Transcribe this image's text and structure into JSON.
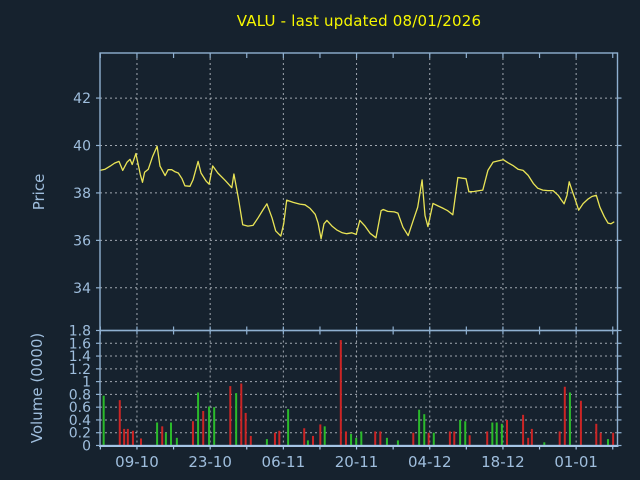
{
  "colors": {
    "background": "#16222e",
    "title": "#f8f800",
    "axis_border": "#8fb0d0",
    "bottom_axis": "#a5c5e5",
    "tick_label": "#9fbedd",
    "grid": "#b9bfc7",
    "price_line": "#e9e456",
    "volume_up": "#2bbb2b",
    "volume_down": "#cc2525"
  },
  "x_axis": {
    "domain": [
      0,
      70.7
    ],
    "minor_tick_start": 0.05,
    "minor_tick_step": 5,
    "ticks": [
      [
        5.05,
        "09-10"
      ],
      [
        15.05,
        "23-10"
      ],
      [
        25.05,
        "06-11"
      ],
      [
        35.05,
        "20-11"
      ],
      [
        45.05,
        "04-12"
      ],
      [
        55.05,
        "18-12"
      ],
      [
        65.05,
        "01-01"
      ]
    ]
  },
  "chart_data": [
    {
      "type": "line",
      "name": "price-panel",
      "title": "VALU - last updated 08/01/2026",
      "ylabel": "Price",
      "ylim": [
        32.2,
        43.9
      ],
      "grid": true,
      "yticks": [
        [
          34,
          "34"
        ],
        [
          36,
          "36"
        ],
        [
          38,
          "38"
        ],
        [
          40,
          "40"
        ],
        [
          42,
          "42"
        ]
      ],
      "series": [
        {
          "name": "close",
          "points": [
            [
              0,
              38.95
            ],
            [
              0.7,
              39.0
            ],
            [
              1.4,
              39.13
            ],
            [
              2,
              39.26
            ],
            [
              2.6,
              39.33
            ],
            [
              3.1,
              38.95
            ],
            [
              3.7,
              39.3
            ],
            [
              4.1,
              39.42
            ],
            [
              4.4,
              39.2
            ],
            [
              4.9,
              39.66
            ],
            [
              5.5,
              38.78
            ],
            [
              5.8,
              38.45
            ],
            [
              6.1,
              38.87
            ],
            [
              6.6,
              39.0
            ],
            [
              7.2,
              39.55
            ],
            [
              7.8,
              39.97
            ],
            [
              8.2,
              39.13
            ],
            [
              8.9,
              38.73
            ],
            [
              9.3,
              38.98
            ],
            [
              9.8,
              38.98
            ],
            [
              10.2,
              38.9
            ],
            [
              10.7,
              38.84
            ],
            [
              11.2,
              38.6
            ],
            [
              11.6,
              38.3
            ],
            [
              12.3,
              38.28
            ],
            [
              12.7,
              38.55
            ],
            [
              13.4,
              39.33
            ],
            [
              13.8,
              38.84
            ],
            [
              14.5,
              38.5
            ],
            [
              14.9,
              38.37
            ],
            [
              15.4,
              39.14
            ],
            [
              16.1,
              38.84
            ],
            [
              17.1,
              38.53
            ],
            [
              18,
              38.22
            ],
            [
              18.3,
              38.8
            ],
            [
              18.9,
              37.8
            ],
            [
              19.5,
              36.66
            ],
            [
              20.2,
              36.6
            ],
            [
              20.9,
              36.63
            ],
            [
              21.6,
              36.95
            ],
            [
              22.3,
              37.3
            ],
            [
              22.8,
              37.54
            ],
            [
              23.5,
              36.95
            ],
            [
              24,
              36.4
            ],
            [
              24.7,
              36.18
            ],
            [
              25.1,
              36.7
            ],
            [
              25.5,
              37.7
            ],
            [
              26.4,
              37.6
            ],
            [
              27.3,
              37.53
            ],
            [
              28,
              37.5
            ],
            [
              28.7,
              37.35
            ],
            [
              29.4,
              37.1
            ],
            [
              29.8,
              36.73
            ],
            [
              30.2,
              36.07
            ],
            [
              30.6,
              36.7
            ],
            [
              31,
              36.84
            ],
            [
              31.7,
              36.6
            ],
            [
              32.4,
              36.43
            ],
            [
              33.1,
              36.32
            ],
            [
              33.7,
              36.28
            ],
            [
              34.4,
              36.32
            ],
            [
              35,
              36.25
            ],
            [
              35.5,
              36.84
            ],
            [
              36.2,
              36.6
            ],
            [
              36.9,
              36.3
            ],
            [
              37.7,
              36.11
            ],
            [
              38.4,
              37.25
            ],
            [
              38.7,
              37.3
            ],
            [
              39.3,
              37.22
            ],
            [
              40.2,
              37.2
            ],
            [
              40.7,
              37.15
            ],
            [
              41.4,
              36.55
            ],
            [
              42.1,
              36.2
            ],
            [
              42.8,
              36.85
            ],
            [
              43.4,
              37.4
            ],
            [
              44,
              38.55
            ],
            [
              44.4,
              37.05
            ],
            [
              44.8,
              36.58
            ],
            [
              45.5,
              37.56
            ],
            [
              46.2,
              37.45
            ],
            [
              46.9,
              37.35
            ],
            [
              47.5,
              37.25
            ],
            [
              48.2,
              37.08
            ],
            [
              48.9,
              38.65
            ],
            [
              49.5,
              38.62
            ],
            [
              50,
              38.6
            ],
            [
              50.4,
              38.05
            ],
            [
              51.1,
              38.06
            ],
            [
              51.8,
              38.1
            ],
            [
              52.3,
              38.12
            ],
            [
              53,
              38.95
            ],
            [
              53.7,
              39.3
            ],
            [
              54.4,
              39.35
            ],
            [
              55.1,
              39.4
            ],
            [
              55.7,
              39.28
            ],
            [
              56.4,
              39.16
            ],
            [
              57.1,
              39.0
            ],
            [
              57.8,
              38.95
            ],
            [
              58.5,
              38.74
            ],
            [
              59.2,
              38.4
            ],
            [
              59.8,
              38.2
            ],
            [
              60.5,
              38.12
            ],
            [
              61.2,
              38.1
            ],
            [
              61.9,
              38.1
            ],
            [
              62.6,
              37.9
            ],
            [
              63,
              37.72
            ],
            [
              63.4,
              37.54
            ],
            [
              63.8,
              37.9
            ],
            [
              64.1,
              38.47
            ],
            [
              64.5,
              38.1
            ],
            [
              64.9,
              37.75
            ],
            [
              65.4,
              37.27
            ],
            [
              66,
              37.55
            ],
            [
              66.7,
              37.75
            ],
            [
              67.2,
              37.85
            ],
            [
              67.8,
              37.9
            ],
            [
              68.3,
              37.4
            ],
            [
              68.9,
              37.0
            ],
            [
              69.4,
              36.73
            ],
            [
              69.8,
              36.7
            ],
            [
              70.2,
              36.77
            ]
          ]
        }
      ]
    },
    {
      "type": "bar",
      "name": "volume-panel",
      "ylabel": "Volume (0000)",
      "ylim": [
        0,
        1.8
      ],
      "grid": true,
      "yticks": [
        [
          0,
          "0"
        ],
        [
          0.2,
          "0.2"
        ],
        [
          0.4,
          "0.4"
        ],
        [
          0.6,
          "0.6"
        ],
        [
          0.8,
          "0.8"
        ],
        [
          1,
          "1"
        ],
        [
          1.2,
          "1.2"
        ],
        [
          1.4,
          "1.4"
        ],
        [
          1.6,
          "1.6"
        ],
        [
          1.8,
          "1.8"
        ]
      ],
      "bars": [
        [
          0.5,
          0.78,
          "up"
        ],
        [
          2.7,
          0.71,
          "down"
        ],
        [
          3.3,
          0.26,
          "down"
        ],
        [
          3.8,
          0.26,
          "down"
        ],
        [
          4.5,
          0.23,
          "down"
        ],
        [
          5.6,
          0.11,
          "down"
        ],
        [
          7.8,
          0.36,
          "up"
        ],
        [
          8.5,
          0.3,
          "down"
        ],
        [
          9,
          0.2,
          "up"
        ],
        [
          9.7,
          0.36,
          "up"
        ],
        [
          10.5,
          0.12,
          "up"
        ],
        [
          12.7,
          0.38,
          "down"
        ],
        [
          13.4,
          0.83,
          "up"
        ],
        [
          14.1,
          0.54,
          "down"
        ],
        [
          14.9,
          0.61,
          "up"
        ],
        [
          15.6,
          0.6,
          "up"
        ],
        [
          17.8,
          0.93,
          "down"
        ],
        [
          18.6,
          0.82,
          "up"
        ],
        [
          19.3,
          0.97,
          "down"
        ],
        [
          19.9,
          0.51,
          "down"
        ],
        [
          20.6,
          0.15,
          "down"
        ],
        [
          22.8,
          0.1,
          "up"
        ],
        [
          23.9,
          0.2,
          "down"
        ],
        [
          24.5,
          0.23,
          "down"
        ],
        [
          25.7,
          0.57,
          "up"
        ],
        [
          27.9,
          0.27,
          "down"
        ],
        [
          28.4,
          0.08,
          "up"
        ],
        [
          29.1,
          0.15,
          "down"
        ],
        [
          30.1,
          0.33,
          "down"
        ],
        [
          30.7,
          0.3,
          "up"
        ],
        [
          32.9,
          1.65,
          "down"
        ],
        [
          33.6,
          0.22,
          "down"
        ],
        [
          34.3,
          0.18,
          "up"
        ],
        [
          35,
          0.12,
          "up"
        ],
        [
          35.7,
          0.22,
          "up"
        ],
        [
          37.6,
          0.22,
          "down"
        ],
        [
          38.3,
          0.22,
          "down"
        ],
        [
          39.2,
          0.12,
          "up"
        ],
        [
          40.7,
          0.08,
          "up"
        ],
        [
          42.8,
          0.2,
          "down"
        ],
        [
          43.6,
          0.56,
          "up"
        ],
        [
          44.3,
          0.49,
          "up"
        ],
        [
          44.9,
          0.2,
          "down"
        ],
        [
          45.6,
          0.2,
          "up"
        ],
        [
          47.8,
          0.22,
          "down"
        ],
        [
          48.4,
          0.22,
          "down"
        ],
        [
          49.2,
          0.4,
          "up"
        ],
        [
          49.9,
          0.38,
          "up"
        ],
        [
          50.5,
          0.16,
          "down"
        ],
        [
          52.9,
          0.22,
          "down"
        ],
        [
          53.6,
          0.36,
          "up"
        ],
        [
          54.2,
          0.36,
          "up"
        ],
        [
          54.9,
          0.34,
          "up"
        ],
        [
          55.6,
          0.4,
          "down"
        ],
        [
          57.8,
          0.48,
          "down"
        ],
        [
          58.5,
          0.12,
          "down"
        ],
        [
          59,
          0.26,
          "down"
        ],
        [
          60.7,
          0.05,
          "up"
        ],
        [
          62.8,
          0.22,
          "down"
        ],
        [
          63.5,
          0.92,
          "down"
        ],
        [
          64.2,
          0.83,
          "up"
        ],
        [
          65.7,
          0.7,
          "down"
        ],
        [
          67.8,
          0.34,
          "down"
        ],
        [
          68.4,
          0.2,
          "down"
        ],
        [
          69.4,
          0.1,
          "up"
        ],
        [
          70.1,
          0.2,
          "down"
        ]
      ]
    }
  ]
}
